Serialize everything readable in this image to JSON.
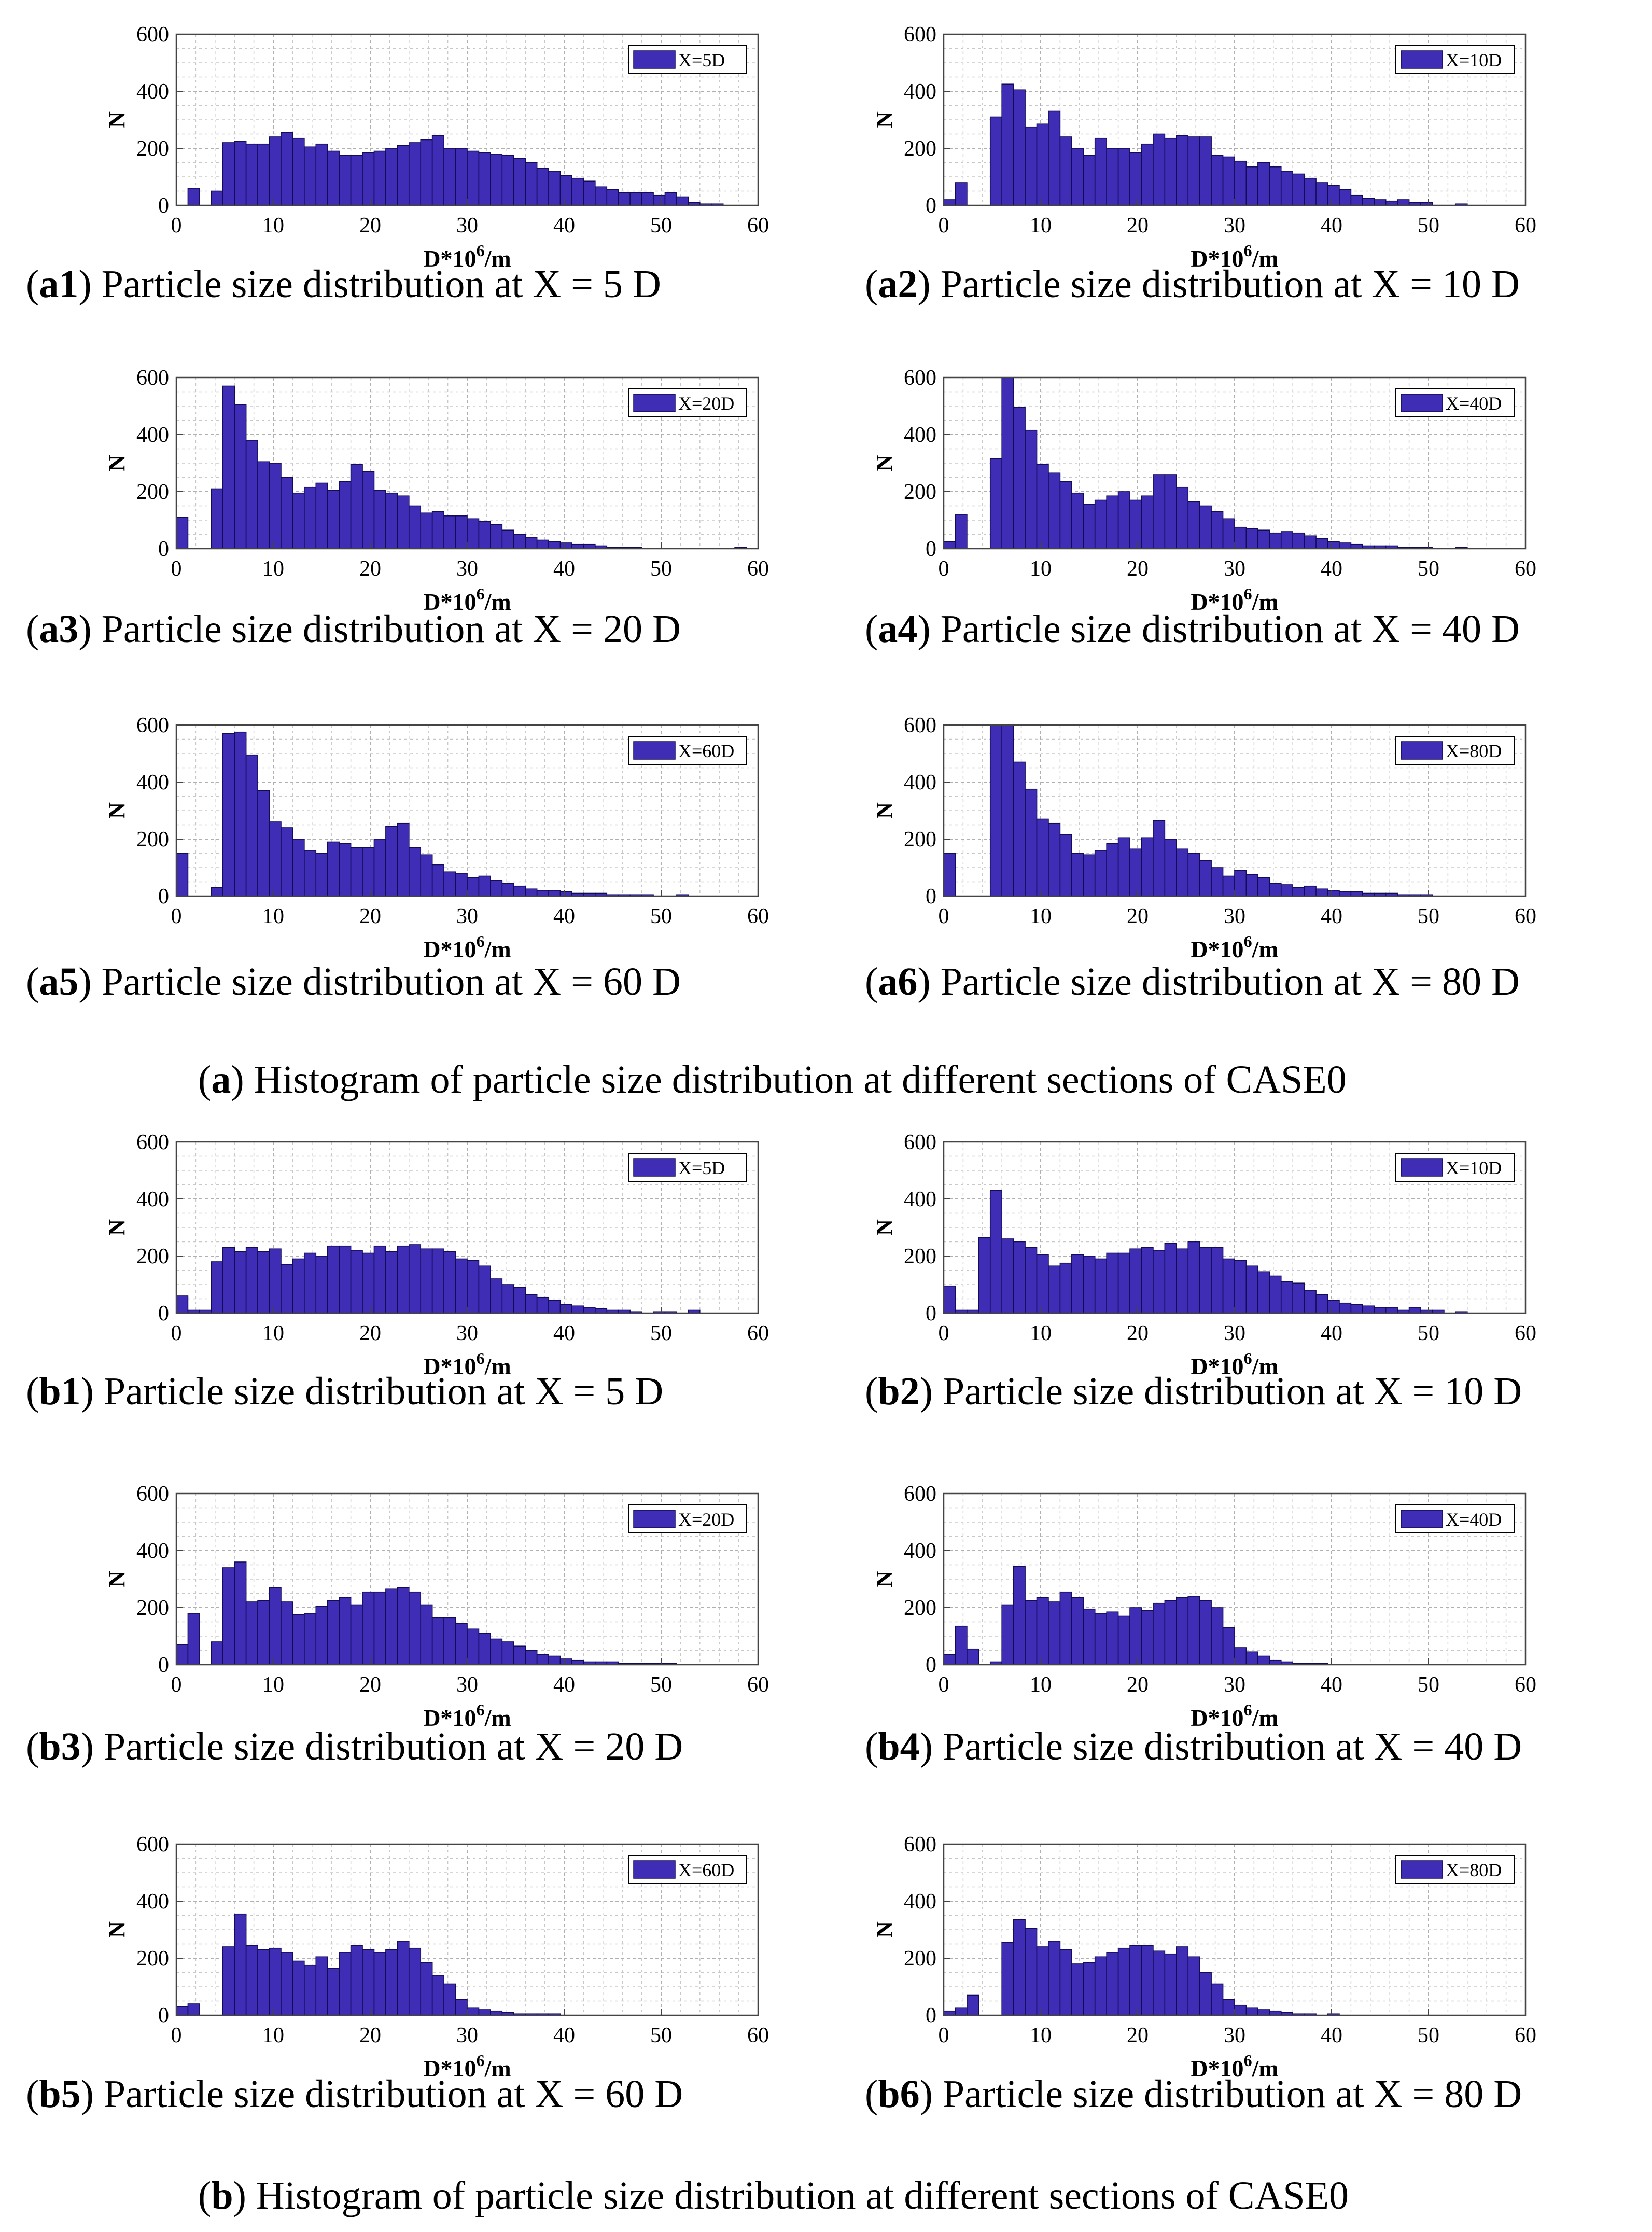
{
  "figure": {
    "group_a_caption": {
      "label": "a",
      "text": "Histogram of particle size distribution at different sections of CASE0"
    },
    "group_b_caption": {
      "label": "b",
      "text": "Histogram of particle size distribution at different sections of CASE0"
    }
  },
  "colors": {
    "bar_fill": "#3f2db6",
    "bar_stroke": "#120c57",
    "grid": "#c8c8c8",
    "axis": "#444444"
  },
  "chart_data": [
    {
      "id": "a1",
      "type": "bar",
      "caption_label": "a1",
      "caption_text": "Particle size distribution at X = 5 D",
      "legend": "X=5D",
      "xlabel": "D*10",
      "xlabel_sup": "6",
      "xlabel_tail": "/m",
      "ylabel": "N",
      "xlim": [
        0,
        60
      ],
      "ylim": [
        0,
        600
      ],
      "xticks": [
        0,
        10,
        20,
        30,
        40,
        50,
        60
      ],
      "yticks": [
        0,
        200,
        400,
        600
      ],
      "bin_width": 1.2,
      "values": [
        0,
        60,
        0,
        50,
        220,
        225,
        215,
        215,
        240,
        255,
        235,
        205,
        215,
        190,
        175,
        175,
        185,
        190,
        200,
        210,
        220,
        230,
        245,
        200,
        200,
        190,
        185,
        180,
        175,
        165,
        150,
        130,
        120,
        105,
        95,
        85,
        65,
        55,
        45,
        45,
        45,
        35,
        45,
        30,
        10,
        5,
        5,
        0,
        0,
        0
      ]
    },
    {
      "id": "a2",
      "type": "bar",
      "caption_label": "a2",
      "caption_text": "Particle size distribution at X = 10 D",
      "legend": "X=10D",
      "xlabel": "D*10",
      "xlabel_sup": "6",
      "xlabel_tail": "/m",
      "ylabel": "N",
      "xlim": [
        0,
        60
      ],
      "ylim": [
        0,
        600
      ],
      "xticks": [
        0,
        10,
        20,
        30,
        40,
        50,
        60
      ],
      "yticks": [
        0,
        200,
        400,
        600
      ],
      "bin_width": 1.2,
      "values": [
        20,
        80,
        0,
        0,
        310,
        425,
        405,
        275,
        285,
        330,
        240,
        200,
        175,
        235,
        200,
        200,
        185,
        215,
        250,
        235,
        245,
        240,
        240,
        175,
        170,
        155,
        135,
        150,
        135,
        120,
        110,
        95,
        80,
        70,
        55,
        35,
        25,
        20,
        15,
        20,
        10,
        10,
        0,
        0,
        5,
        0,
        0,
        0,
        0,
        0
      ]
    },
    {
      "id": "a3",
      "type": "bar",
      "caption_label": "a3",
      "caption_text": "Particle size distribution at X = 20 D",
      "legend": "X=20D",
      "xlabel": "D*10",
      "xlabel_sup": "6",
      "xlabel_tail": "/m",
      "ylabel": "N",
      "xlim": [
        0,
        60
      ],
      "ylim": [
        0,
        600
      ],
      "xticks": [
        0,
        10,
        20,
        30,
        40,
        50,
        60
      ],
      "yticks": [
        0,
        200,
        400,
        600
      ],
      "bin_width": 1.2,
      "values": [
        110,
        0,
        0,
        210,
        570,
        505,
        380,
        305,
        300,
        250,
        195,
        215,
        230,
        205,
        235,
        295,
        270,
        205,
        195,
        185,
        150,
        125,
        130,
        115,
        115,
        105,
        95,
        85,
        65,
        50,
        40,
        30,
        25,
        20,
        15,
        15,
        10,
        5,
        5,
        5,
        0,
        0,
        0,
        0,
        0,
        0,
        0,
        0,
        5,
        0
      ]
    },
    {
      "id": "a4",
      "type": "bar",
      "caption_label": "a4",
      "caption_text": "Particle size distribution at X = 40 D",
      "legend": "X=40D",
      "xlabel": "D*10",
      "xlabel_sup": "6",
      "xlabel_tail": "/m",
      "ylabel": "N",
      "xlim": [
        0,
        60
      ],
      "ylim": [
        0,
        600
      ],
      "xticks": [
        0,
        10,
        20,
        30,
        40,
        50,
        60
      ],
      "yticks": [
        0,
        200,
        400,
        600
      ],
      "bin_width": 1.2,
      "values": [
        25,
        120,
        0,
        0,
        315,
        600,
        495,
        415,
        295,
        265,
        235,
        195,
        155,
        170,
        185,
        200,
        170,
        185,
        260,
        260,
        215,
        165,
        150,
        130,
        105,
        75,
        70,
        65,
        55,
        60,
        55,
        45,
        35,
        25,
        20,
        15,
        10,
        10,
        10,
        5,
        5,
        5,
        0,
        0,
        5,
        0,
        0,
        0,
        0,
        0
      ]
    },
    {
      "id": "a5",
      "type": "bar",
      "caption_label": "a5",
      "caption_text": "Particle size distribution at X = 60 D",
      "legend": "X=60D",
      "xlabel": "D*10",
      "xlabel_sup": "6",
      "xlabel_tail": "/m",
      "ylabel": "N",
      "xlim": [
        0,
        60
      ],
      "ylim": [
        0,
        600
      ],
      "xticks": [
        0,
        10,
        20,
        30,
        40,
        50,
        60
      ],
      "yticks": [
        0,
        200,
        400,
        600
      ],
      "bin_width": 1.2,
      "values": [
        150,
        0,
        0,
        30,
        570,
        575,
        495,
        370,
        260,
        240,
        200,
        160,
        150,
        190,
        185,
        170,
        170,
        200,
        245,
        255,
        170,
        145,
        110,
        85,
        80,
        65,
        70,
        55,
        45,
        35,
        25,
        20,
        20,
        15,
        10,
        10,
        10,
        5,
        5,
        5,
        5,
        0,
        0,
        5,
        0,
        0,
        0,
        0,
        0,
        0
      ]
    },
    {
      "id": "a6",
      "type": "bar",
      "caption_label": "a6",
      "caption_text": "Particle size distribution at X = 80 D",
      "legend": "X=80D",
      "xlabel": "D*10",
      "xlabel_sup": "6",
      "xlabel_tail": "/m",
      "ylabel": "N",
      "xlim": [
        0,
        60
      ],
      "ylim": [
        0,
        600
      ],
      "xticks": [
        0,
        10,
        20,
        30,
        40,
        50,
        60
      ],
      "yticks": [
        0,
        200,
        400,
        600
      ],
      "bin_width": 1.2,
      "values": [
        150,
        0,
        0,
        0,
        600,
        600,
        470,
        375,
        270,
        255,
        215,
        150,
        145,
        160,
        185,
        205,
        165,
        205,
        265,
        200,
        165,
        150,
        125,
        100,
        70,
        90,
        75,
        65,
        45,
        40,
        30,
        35,
        25,
        20,
        15,
        15,
        10,
        10,
        10,
        5,
        5,
        5,
        0,
        0,
        0,
        0,
        0,
        0,
        0,
        0
      ]
    },
    {
      "id": "b1",
      "type": "bar",
      "caption_label": "b1",
      "caption_text": "Particle size distribution at X = 5 D",
      "legend": "X=5D",
      "xlabel": "D*10",
      "xlabel_sup": "6",
      "xlabel_tail": "/m",
      "ylabel": "N",
      "xlim": [
        0,
        60
      ],
      "ylim": [
        0,
        600
      ],
      "xticks": [
        0,
        10,
        20,
        30,
        40,
        50,
        60
      ],
      "yticks": [
        0,
        200,
        400,
        600
      ],
      "bin_width": 1.2,
      "values": [
        60,
        10,
        10,
        180,
        230,
        215,
        230,
        215,
        225,
        170,
        190,
        210,
        200,
        235,
        235,
        220,
        210,
        235,
        215,
        235,
        240,
        225,
        225,
        215,
        190,
        185,
        165,
        120,
        100,
        90,
        65,
        55,
        45,
        30,
        25,
        20,
        15,
        10,
        10,
        5,
        0,
        5,
        5,
        0,
        10,
        0,
        0,
        0,
        0,
        0
      ]
    },
    {
      "id": "b2",
      "type": "bar",
      "caption_label": "b2",
      "caption_text": "Particle size distribution at X = 10 D",
      "legend": "X=10D",
      "xlabel": "D*10",
      "xlabel_sup": "6",
      "xlabel_tail": "/m",
      "ylabel": "N",
      "xlim": [
        0,
        60
      ],
      "ylim": [
        0,
        600
      ],
      "xticks": [
        0,
        10,
        20,
        30,
        40,
        50,
        60
      ],
      "yticks": [
        0,
        200,
        400,
        600
      ],
      "bin_width": 1.2,
      "values": [
        95,
        10,
        10,
        265,
        430,
        260,
        250,
        230,
        205,
        165,
        175,
        205,
        200,
        190,
        210,
        210,
        225,
        230,
        220,
        245,
        225,
        250,
        230,
        230,
        190,
        185,
        165,
        145,
        130,
        110,
        105,
        80,
        65,
        45,
        35,
        30,
        25,
        20,
        20,
        10,
        20,
        10,
        10,
        0,
        5,
        0,
        0,
        0,
        0,
        0
      ]
    },
    {
      "id": "b3",
      "type": "bar",
      "caption_label": "b3",
      "caption_text": "Particle size distribution at X = 20 D",
      "legend": "X=20D",
      "xlabel": "D*10",
      "xlabel_sup": "6",
      "xlabel_tail": "/m",
      "ylabel": "N",
      "xlim": [
        0,
        60
      ],
      "ylim": [
        0,
        600
      ],
      "xticks": [
        0,
        10,
        20,
        30,
        40,
        50,
        60
      ],
      "yticks": [
        0,
        200,
        400,
        600
      ],
      "bin_width": 1.2,
      "values": [
        70,
        180,
        0,
        80,
        340,
        360,
        220,
        225,
        270,
        220,
        175,
        180,
        205,
        225,
        235,
        210,
        255,
        255,
        265,
        270,
        255,
        210,
        165,
        165,
        145,
        125,
        110,
        90,
        80,
        65,
        50,
        35,
        30,
        20,
        15,
        10,
        10,
        10,
        5,
        5,
        5,
        5,
        5,
        0,
        0,
        0,
        0,
        0,
        0,
        0
      ]
    },
    {
      "id": "b4",
      "type": "bar",
      "caption_label": "b4",
      "caption_text": "Particle size distribution at X = 40 D",
      "legend": "X=40D",
      "xlabel": "D*10",
      "xlabel_sup": "6",
      "xlabel_tail": "/m",
      "ylabel": "N",
      "xlim": [
        0,
        60
      ],
      "ylim": [
        0,
        600
      ],
      "xticks": [
        0,
        10,
        20,
        30,
        40,
        50,
        60
      ],
      "yticks": [
        0,
        200,
        400,
        600
      ],
      "bin_width": 1.2,
      "values": [
        35,
        135,
        55,
        0,
        10,
        210,
        345,
        225,
        235,
        220,
        255,
        235,
        195,
        180,
        185,
        170,
        200,
        190,
        215,
        225,
        235,
        240,
        225,
        200,
        130,
        60,
        45,
        30,
        15,
        10,
        5,
        5,
        5,
        0,
        0,
        0,
        0,
        0,
        0,
        0,
        0,
        0,
        0,
        0,
        0,
        0,
        0,
        0,
        0,
        0
      ]
    },
    {
      "id": "b5",
      "type": "bar",
      "caption_label": "b5",
      "caption_text": "Particle size distribution at X = 60 D",
      "legend": "X=60D",
      "xlabel": "D*10",
      "xlabel_sup": "6",
      "xlabel_tail": "/m",
      "ylabel": "N",
      "xlim": [
        0,
        60
      ],
      "ylim": [
        0,
        600
      ],
      "xticks": [
        0,
        10,
        20,
        30,
        40,
        50,
        60
      ],
      "yticks": [
        0,
        200,
        400,
        600
      ],
      "bin_width": 1.2,
      "values": [
        30,
        40,
        0,
        0,
        240,
        355,
        245,
        230,
        235,
        220,
        190,
        175,
        205,
        165,
        220,
        245,
        230,
        220,
        230,
        260,
        235,
        185,
        140,
        110,
        55,
        25,
        20,
        15,
        10,
        5,
        5,
        5,
        5,
        0,
        0,
        0,
        0,
        0,
        0,
        0,
        0,
        0,
        0,
        0,
        0,
        0,
        0,
        0,
        0,
        0
      ]
    },
    {
      "id": "b6",
      "type": "bar",
      "caption_label": "b6",
      "caption_text": "Particle size distribution at X = 80 D",
      "legend": "X=80D",
      "xlabel": "D*10",
      "xlabel_sup": "6",
      "xlabel_tail": "/m",
      "ylabel": "N",
      "xlim": [
        0,
        60
      ],
      "ylim": [
        0,
        600
      ],
      "xticks": [
        0,
        10,
        20,
        30,
        40,
        50,
        60
      ],
      "yticks": [
        0,
        200,
        400,
        600
      ],
      "bin_width": 1.2,
      "values": [
        15,
        25,
        70,
        0,
        0,
        255,
        335,
        305,
        240,
        260,
        230,
        180,
        185,
        205,
        220,
        235,
        245,
        245,
        225,
        215,
        240,
        205,
        150,
        110,
        55,
        35,
        25,
        20,
        15,
        10,
        5,
        5,
        0,
        5,
        0,
        0,
        0,
        0,
        0,
        0,
        0,
        0,
        0,
        0,
        0,
        0,
        0,
        0,
        0,
        0
      ]
    }
  ]
}
